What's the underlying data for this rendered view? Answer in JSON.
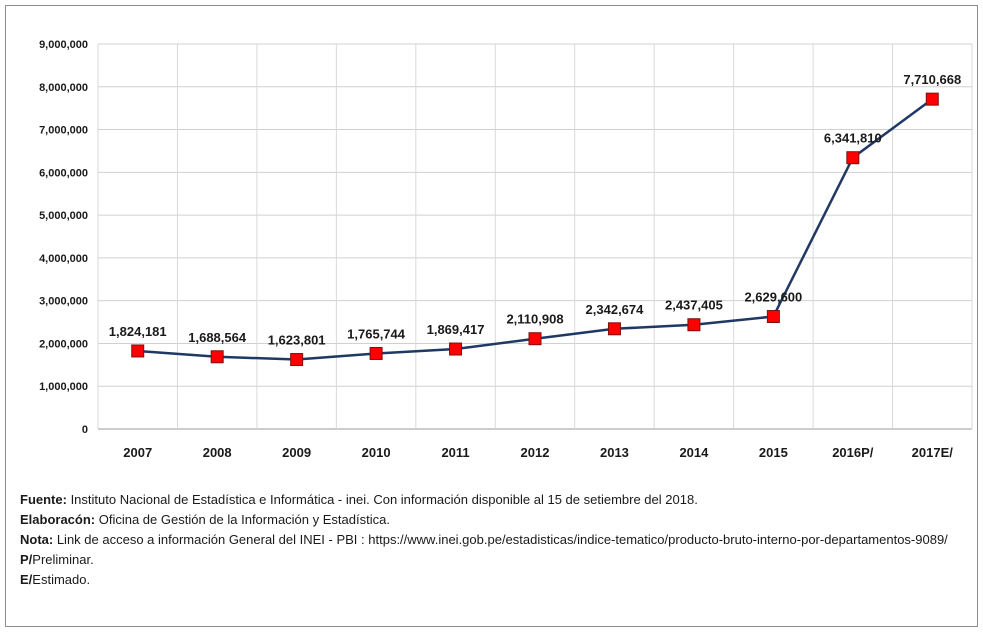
{
  "chart_data": {
    "type": "line",
    "categories": [
      "2007",
      "2008",
      "2009",
      "2010",
      "2011",
      "2012",
      "2013",
      "2014",
      "2015",
      "2016P/",
      "2017E/"
    ],
    "values": [
      1824181,
      1688564,
      1623801,
      1765744,
      1869417,
      2110908,
      2342674,
      2437405,
      2629600,
      6341810,
      7710668
    ],
    "value_labels": [
      "1,824,181",
      "1,688,564",
      "1,623,801",
      "1,765,744",
      "1,869,417",
      "2,110,908",
      "2,342,674",
      "2,437,405",
      "2,629,600",
      "6,341,810",
      "7,710,668"
    ],
    "y_ticks": [
      0,
      1000000,
      2000000,
      3000000,
      4000000,
      5000000,
      6000000,
      7000000,
      8000000,
      9000000
    ],
    "y_tick_labels": [
      "0",
      "1,000,000",
      "2,000,000",
      "3,000,000",
      "4,000,000",
      "5,000,000",
      "6,000,000",
      "7,000,000",
      "8,000,000",
      "9,000,000"
    ],
    "ylim": [
      0,
      9000000
    ],
    "title": "",
    "xlabel": "",
    "ylabel": "",
    "grid": true,
    "line_color": "#1f3864",
    "marker_color": "#ff0000",
    "marker_border": "#7f1010"
  },
  "notes": {
    "source_label": "Fuente:",
    "source_text": " Instituto Nacional de Estadística e Informática - inei. Con información disponible al 15 de setiembre del 2018.",
    "elaboration_label": "Elaboracón:",
    "elaboration_text": " Oficina de Gestión de la Información y Estadística.",
    "note_label": "Nota:",
    "note_text": " Link de acceso a información General del INEI - PBI : https://www.inei.gob.pe/estadisticas/indice-tematico/producto-bruto-interno-por-departamentos-9089/",
    "p_label": "P/",
    "p_text": "Preliminar.",
    "e_label": "E/",
    "e_text": "Estimado."
  }
}
